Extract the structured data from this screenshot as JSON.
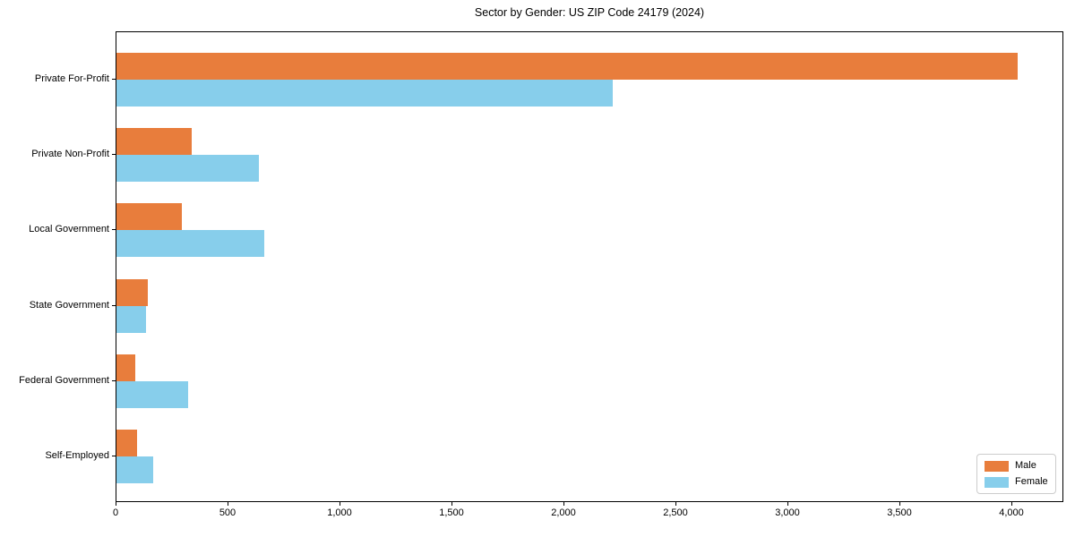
{
  "title": "Sector by Gender: US ZIP Code 24179 (2024)",
  "chart_data": {
    "type": "bar",
    "orientation": "horizontal",
    "title": "Sector by Gender: US ZIP Code 24179 (2024)",
    "categories": [
      "Private For-Profit",
      "Private Non-Profit",
      "Local Government",
      "State Government",
      "Federal Government",
      "Self-Employed"
    ],
    "series": [
      {
        "name": "Male",
        "color": "#e87d3c",
        "values": [
          4025,
          335,
          290,
          140,
          85,
          90
        ]
      },
      {
        "name": "Female",
        "color": "#87ceeb",
        "values": [
          2215,
          635,
          660,
          130,
          320,
          165
        ]
      }
    ],
    "xlabel": "",
    "ylabel": "",
    "xlim": [
      0,
      4232
    ],
    "x_ticks": {
      "values": [
        0,
        500,
        1000,
        1500,
        2000,
        2500,
        3000,
        3500,
        4000
      ],
      "labels": [
        "0",
        "500",
        "1,000",
        "1,500",
        "2,000",
        "2,500",
        "3,000",
        "3,500",
        "4,000"
      ]
    },
    "grid": false,
    "legend": {
      "position": "lower right",
      "entries": [
        "Male",
        "Female"
      ]
    }
  },
  "colors": {
    "axis": "#000000",
    "text": "#000000",
    "background": "#ffffff",
    "legend_border": "#cccccc",
    "male": "#e87d3c",
    "female": "#87ceeb"
  }
}
